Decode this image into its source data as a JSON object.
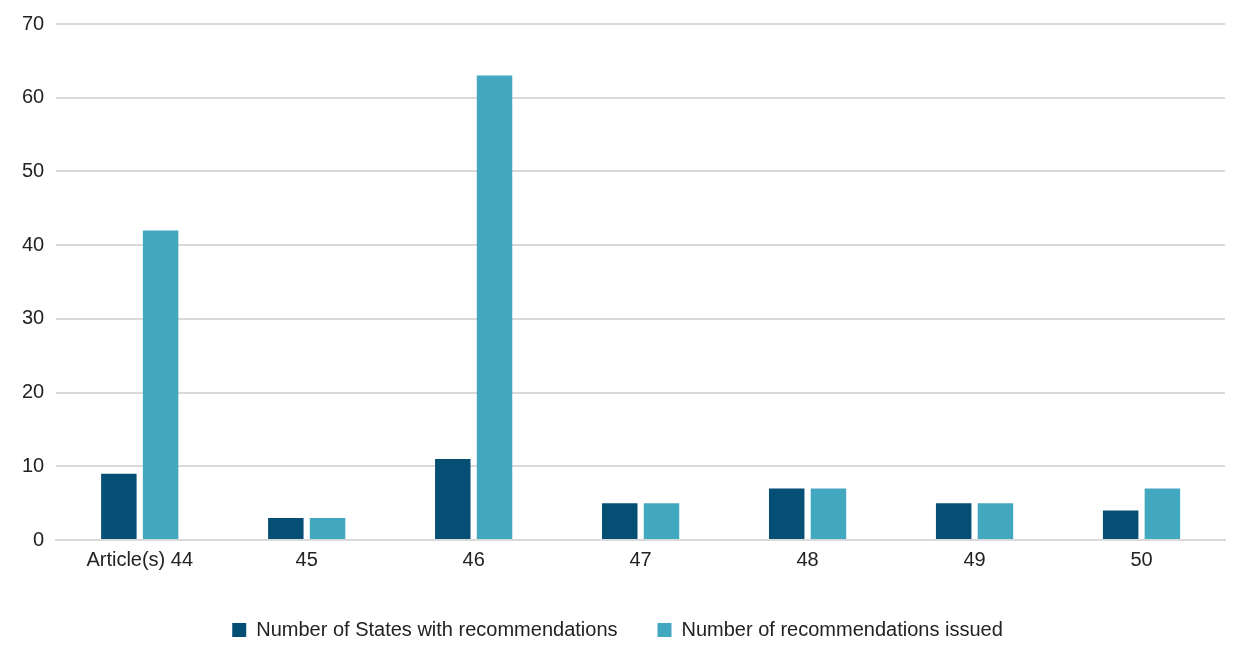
{
  "chart_data": {
    "type": "bar",
    "categories": [
      "Article(s) 44",
      "45",
      "46",
      "47",
      "48",
      "49",
      "50"
    ],
    "series": [
      {
        "name": "Number of States with recommendations",
        "color": "#054e74",
        "values": [
          9,
          3,
          11,
          5,
          7,
          5,
          4
        ]
      },
      {
        "name": "Number of recommendations issued",
        "color": "#42a8bf",
        "values": [
          42,
          3,
          63,
          5,
          7,
          5,
          7
        ]
      }
    ],
    "ylim": [
      0,
      70
    ],
    "yticks": [
      0,
      10,
      20,
      30,
      40,
      50,
      60,
      70
    ],
    "grid": "y",
    "legend": "bottom"
  }
}
